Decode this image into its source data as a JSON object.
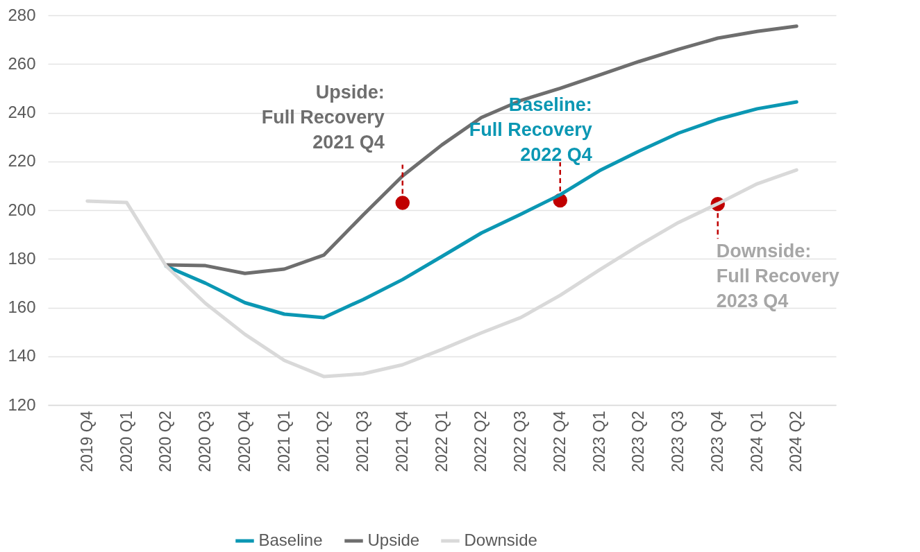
{
  "chart_data": {
    "type": "line",
    "categories": [
      "2019 Q4",
      "2020 Q1",
      "2020 Q2",
      "2020 Q3",
      "2020 Q4",
      "2021 Q1",
      "2021 Q2",
      "2021 Q3",
      "2021 Q4",
      "2022 Q1",
      "2022 Q2",
      "2022 Q3",
      "2022 Q4",
      "2023 Q1",
      "2023 Q2",
      "2023 Q3",
      "2023 Q4",
      "2024 Q1",
      "2024 Q2"
    ],
    "series": [
      {
        "name": "Baseline",
        "color": "#0b97b3",
        "values": [
          null,
          null,
          177,
          170,
          162,
          157.3,
          155.9,
          163.3,
          171.5,
          181,
          190.6,
          198.3,
          206.3,
          216.2,
          224.2,
          231.6,
          237.3,
          241.6,
          244.4
        ]
      },
      {
        "name": "Upside",
        "color": "#6e6e6e",
        "values": [
          null,
          null,
          177.5,
          177.2,
          174,
          175.8,
          181.5,
          198,
          214,
          226.8,
          238,
          245,
          250,
          255.5,
          261,
          266,
          270.6,
          273.4,
          275.5
        ]
      },
      {
        "name": "Downside",
        "color": "#d9d9d9",
        "values": [
          203.7,
          203.1,
          177,
          161.7,
          149,
          138.3,
          131.7,
          132.8,
          136.5,
          142.8,
          149.6,
          155.9,
          165,
          175.5,
          185.5,
          194.9,
          202.6,
          210.8,
          216.5
        ]
      }
    ],
    "ylim": [
      120,
      280
    ],
    "yticks": [
      120,
      140,
      160,
      180,
      200,
      220,
      240,
      260,
      280
    ],
    "grid": "y",
    "legend": "bottom",
    "line_style": "solid",
    "marker": "none",
    "annotations": [
      {
        "text": "Upside:\nFull Recovery\n2021 Q4",
        "x": "2021 Q4",
        "y": 203
      },
      {
        "text": "Baseline:\nFull Recovery\n2022 Q4",
        "x": "2022 Q4",
        "y": 204
      },
      {
        "text": "Downside:\nFull Recovery\n2023 Q4",
        "x": "2023 Q4",
        "y": 202.5
      }
    ]
  }
}
